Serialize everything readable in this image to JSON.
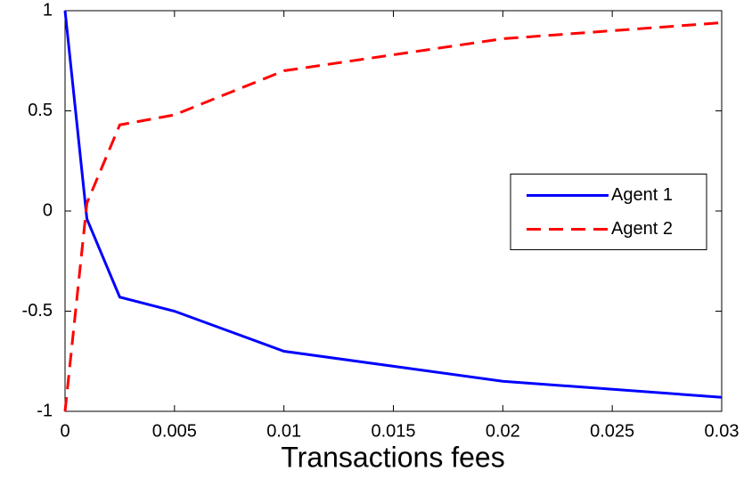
{
  "chart_data": {
    "type": "line",
    "x_label": "Transactions fees",
    "x": [
      0,
      0.001,
      0.0025,
      0.005,
      0.01,
      0.02,
      0.03
    ],
    "series": [
      {
        "name": "Agent 1",
        "color": "#0000ff",
        "dash": "solid",
        "values": [
          1,
          -0.04,
          -0.43,
          -0.5,
          -0.7,
          -0.85,
          -0.93
        ]
      },
      {
        "name": "Agent 2",
        "color": "#ff0000",
        "dash": "dashed",
        "values": [
          -1,
          0.04,
          0.43,
          0.48,
          0.7,
          0.86,
          0.94
        ]
      }
    ],
    "xlim": [
      0,
      0.03
    ],
    "xticks": [
      0,
      0.005,
      0.01,
      0.015,
      0.02,
      0.025,
      0.03
    ],
    "ylim": [
      -1,
      1
    ],
    "yticks": [
      -1,
      -0.5,
      0,
      0.5,
      1
    ],
    "grid": false,
    "legend": "right"
  }
}
